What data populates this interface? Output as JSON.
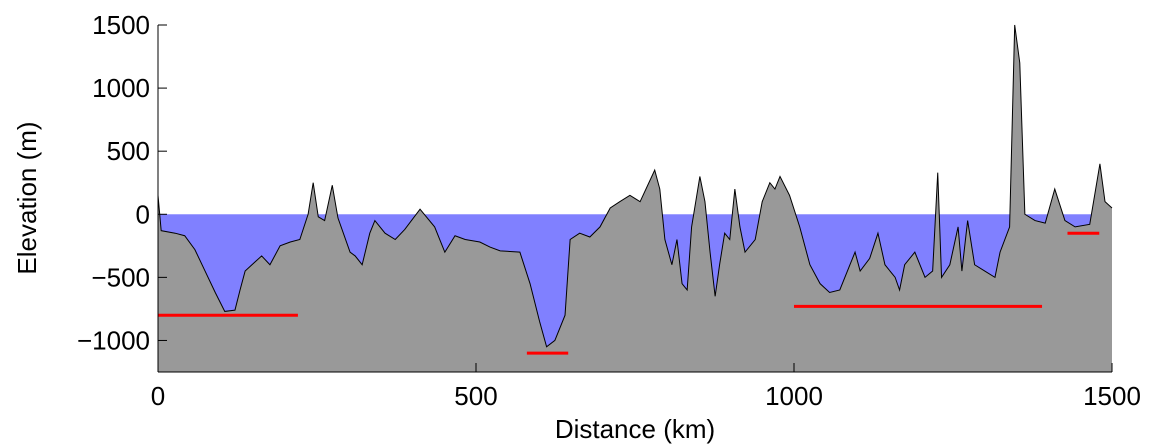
{
  "chart_data": {
    "type": "area",
    "xlabel": "Distance (km)",
    "ylabel": "Elevation (m)",
    "x": [
      0,
      5,
      27,
      42,
      58,
      74,
      90,
      105,
      121,
      129,
      137,
      152,
      163,
      176,
      192,
      208,
      223,
      236,
      244,
      252,
      262,
      274,
      283,
      302,
      310,
      321,
      333,
      341,
      357,
      373,
      388,
      412,
      435,
      451,
      467,
      483,
      506,
      522,
      538,
      569,
      585,
      600,
      611,
      624,
      640,
      648,
      663,
      679,
      695,
      711,
      726,
      742,
      758,
      781,
      789,
      797,
      808,
      816,
      824,
      832,
      839,
      852,
      860,
      868,
      876,
      883,
      891,
      899,
      907,
      915,
      923,
      939,
      950,
      962,
      970,
      978,
      993,
      1009,
      1025,
      1041,
      1056,
      1072,
      1088,
      1096,
      1104,
      1119,
      1132,
      1143,
      1159,
      1166,
      1174,
      1190,
      1206,
      1218,
      1226,
      1232,
      1245,
      1258,
      1264,
      1273,
      1284,
      1300,
      1316,
      1324,
      1339,
      1347,
      1355,
      1363,
      1379,
      1395,
      1410,
      1426,
      1442,
      1465,
      1481,
      1489,
      1500
    ],
    "values": [
      150,
      -130,
      -150,
      -170,
      -280,
      -450,
      -620,
      -770,
      -760,
      -600,
      -450,
      -380,
      -330,
      -400,
      -250,
      -220,
      -200,
      0,
      250,
      -20,
      -50,
      230,
      -30,
      -300,
      -330,
      -400,
      -150,
      -50,
      -150,
      -200,
      -120,
      40,
      -100,
      -300,
      -170,
      -200,
      -220,
      -260,
      -290,
      -300,
      -550,
      -850,
      -1050,
      -1000,
      -800,
      -200,
      -150,
      -180,
      -100,
      50,
      100,
      150,
      100,
      350,
      200,
      -200,
      -400,
      -200,
      -550,
      -600,
      -100,
      300,
      100,
      -300,
      -650,
      -400,
      -150,
      -200,
      200,
      -100,
      -300,
      -200,
      100,
      250,
      200,
      300,
      150,
      -100,
      -400,
      -550,
      -620,
      -600,
      -400,
      -300,
      -450,
      -350,
      -150,
      -400,
      -500,
      -600,
      -400,
      -300,
      -500,
      -450,
      330,
      -500,
      -400,
      -100,
      -450,
      -50,
      -400,
      -450,
      -500,
      -300,
      -100,
      1500,
      1200,
      0,
      -50,
      -70,
      200,
      -50,
      -100,
      -80,
      400,
      100,
      50
    ],
    "color": "#999999",
    "water_level": 0,
    "water_color": "#8080ff",
    "segments": [
      {
        "x": [
          0,
          220
        ],
        "y": -800
      },
      {
        "x": [
          580,
          645
        ],
        "y": -1100
      },
      {
        "x": [
          1000,
          1390
        ],
        "y": -730
      },
      {
        "x": [
          1430,
          1480
        ],
        "y": -150
      }
    ],
    "segment_color": "#ff0000",
    "xlim": [
      0,
      1500
    ],
    "ylim": [
      -1250,
      1500
    ],
    "xticks": [
      0,
      500,
      1000,
      1500
    ],
    "yticks": [
      {
        "value": -1000,
        "label": "−1000"
      },
      {
        "value": -500,
        "label": "−500"
      },
      0,
      500,
      1000,
      1500
    ]
  }
}
